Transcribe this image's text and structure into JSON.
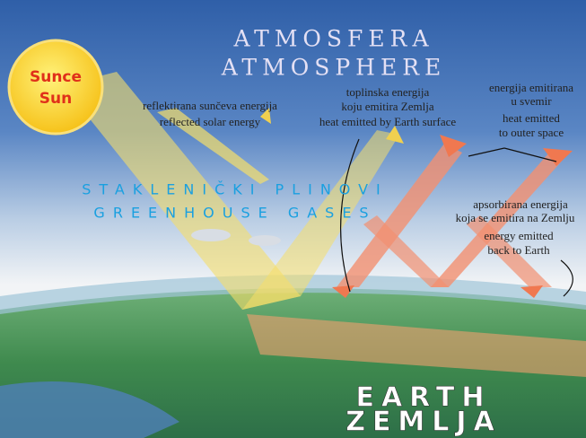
{
  "atmosphere": {
    "hr": "ATMOSFERA",
    "en": "ATMOSPHERE"
  },
  "sun": {
    "hr": "Sunce",
    "en": "Sun"
  },
  "reflected": {
    "hr": "reflektirana sunčeva energija",
    "en": "reflected solar energy"
  },
  "earth_heat": {
    "hr": [
      "toplinska energija",
      "koju emitira Zemlja"
    ],
    "en": "heat emitted by Earth surface"
  },
  "space_heat": {
    "hr": [
      "energija emitirana",
      "u svemir"
    ],
    "en": [
      "heat emitted",
      "to outer space"
    ]
  },
  "greenhouse": {
    "hr": "STAKLENIČKI PLINOVI",
    "en": "GREENHOUSE GASES"
  },
  "back_radiation": {
    "hr": [
      "apsorbirana energija",
      "koja se emitira na Zemlju"
    ],
    "en": [
      "energy emitted",
      "back to Earth"
    ]
  },
  "earth": {
    "en": "EARTH",
    "hr": "ZEMLJA"
  }
}
